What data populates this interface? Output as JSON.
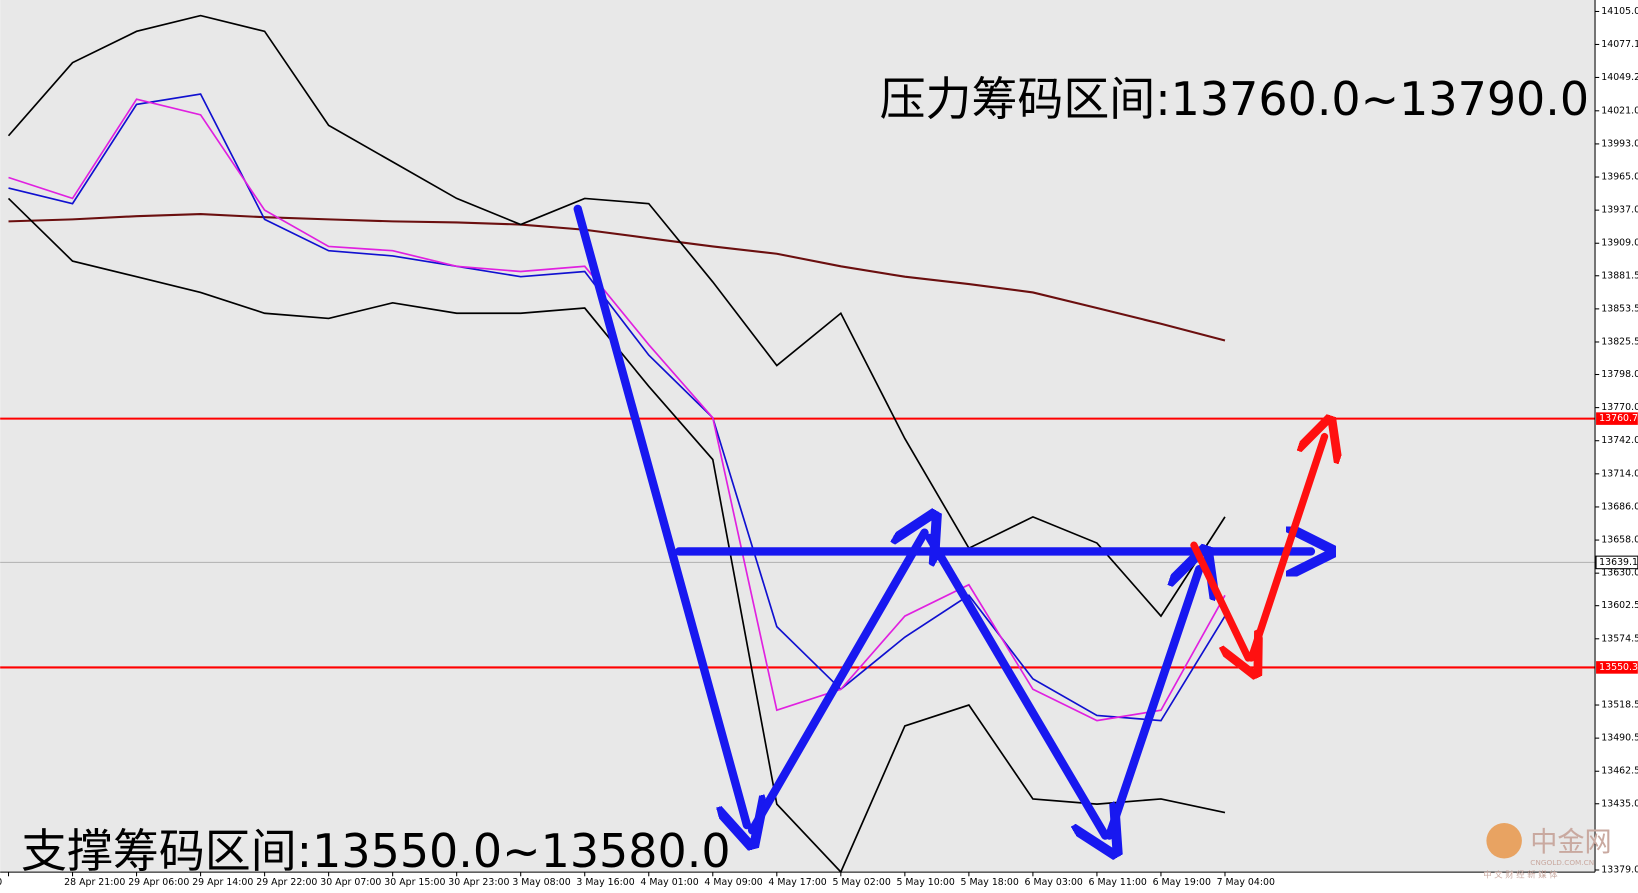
{
  "chart_data": {
    "type": "line",
    "annotations": [
      "压力筹码区间:13760.0~13790.0",
      "支撑筹码区间:13550.0~13580.0"
    ],
    "categories": [
      "Apr 13:00",
      "28 Apr 21:00",
      "29 Apr 06:00",
      "29 Apr 14:00",
      "29 Apr 22:00",
      "30 Apr 07:00",
      "30 Apr 15:00",
      "30 Apr 23:00",
      "3 May 08:00",
      "3 May 16:00",
      "4 May 01:00",
      "4 May 09:00",
      "4 May 17:00",
      "5 May 02:00",
      "5 May 10:00",
      "5 May 18:00",
      "6 May 03:00",
      "6 May 11:00",
      "6 May 19:00",
      "7 May 04:00"
    ],
    "series": [
      {
        "color": "#6b0f0f",
        "values": [
          13927.5,
          13929.2,
          13931.9,
          13933.7,
          13931.0,
          13929.2,
          13927.5,
          13926.6,
          13924.8,
          13920.4,
          13913.3,
          13906.3,
          13900.1,
          13889.5,
          13880.7,
          13874.5,
          13867.4,
          13854.2,
          13840.9,
          13826.8
        ]
      },
      {
        "color": "#000000",
        "values": [
          13999.9,
          14061.7,
          14088.2,
          14101.5,
          14088.2,
          14008.7,
          13977.8,
          13946.9,
          13924.8,
          13946.9,
          13942.5,
          13876.3,
          13805.6,
          13849.8,
          13743.8,
          13651.1,
          13677.6,
          13655.5,
          13593.7,
          13677.6
        ]
      },
      {
        "color": "#000000",
        "values": [
          13946.9,
          13893.9,
          13880.7,
          13867.4,
          13849.8,
          13845.4,
          13858.6,
          13849.8,
          13849.8,
          13854.2,
          13788.0,
          13726.1,
          13434.7,
          13377.3,
          13500.8,
          13518.5,
          13439.1,
          13434.7,
          13439.1,
          13427.6
        ]
      },
      {
        "color": "#1010d0",
        "values": [
          13955.7,
          13942.5,
          14026.4,
          14035.2,
          13929.2,
          13902.7,
          13898.3,
          13889.5,
          13880.7,
          13885.1,
          13814.4,
          13761.4,
          13584.8,
          13531.8,
          13575.9,
          13611.3,
          13540.6,
          13509.7,
          13505.3,
          13593.7
        ]
      },
      {
        "color": "#e020e0",
        "values": [
          13964.6,
          13946.9,
          14030.8,
          14017.6,
          13937.0,
          13906.3,
          13902.7,
          13889.5,
          13885.1,
          13889.5,
          13823.2,
          13761.4,
          13514.1,
          13531.8,
          13593.7,
          13620.2,
          13531.8,
          13505.3,
          13514.1,
          13611.3
        ]
      }
    ],
    "ylim": [
      13377.2,
      14114.7
    ],
    "yticks": [
      {
        "value": 14105.0,
        "label": "14105.0"
      },
      14077.1,
      14049.2,
      {
        "value": 14021.0,
        "label": "14021.0"
      },
      {
        "value": 13993.0,
        "label": "13993.0"
      },
      {
        "value": 13965.0,
        "label": "13965.0"
      },
      {
        "value": 13937.0,
        "label": "13937.0"
      },
      {
        "value": 13909.0,
        "label": "13909.0"
      },
      13881.5,
      13853.5,
      13825.5,
      {
        "value": 13798.0,
        "label": "13798.0"
      },
      {
        "value": 13770.0,
        "label": "13770.0"
      },
      {
        "value": 13742.0,
        "label": "13742.0"
      },
      {
        "value": 13714.0,
        "label": "13714.0"
      },
      {
        "value": 13686.0,
        "label": "13686.0"
      },
      {
        "value": 13658.0,
        "label": "13658.0"
      },
      {
        "value": 13630.0,
        "label": "13630.0"
      },
      13602.5,
      13574.5,
      13518.5,
      13490.5,
      13462.5,
      {
        "value": 13435.0,
        "label": "13435.0"
      },
      {
        "value": 13379.0,
        "label": "13379.0"
      }
    ],
    "hlines": [
      {
        "value": 13760.7,
        "color": "#ff0000"
      },
      {
        "value": 13639.1,
        "color": "#b0b0b0"
      },
      {
        "value": 13550.3,
        "color": "#ff0000"
      }
    ],
    "watermark": [
      "中金网",
      "CNGOLD.COM.CN",
      "中 文 财 经 新 媒 体"
    ]
  }
}
